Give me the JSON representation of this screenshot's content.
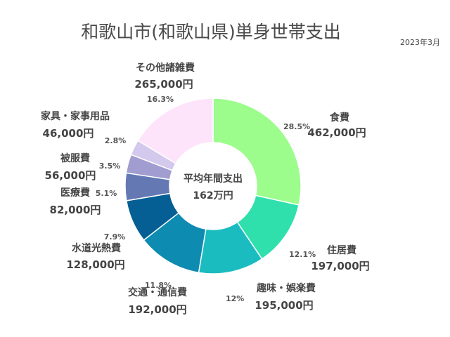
{
  "title": "和歌山市(和歌山県)単身世帯支出",
  "date": "2023年3月",
  "chart_data": {
    "type": "pie",
    "center_label": "平均年間支出",
    "center_value": "162万円",
    "slices": [
      {
        "label": "食費",
        "value": 462000,
        "value_label": "462,000円",
        "percent": "28.5%",
        "color": "#9cfc8c"
      },
      {
        "label": "住居費",
        "value": 197000,
        "value_label": "197,000円",
        "percent": "12.1%",
        "color": "#2fe0ad"
      },
      {
        "label": "趣味・娯楽費",
        "value": 195000,
        "value_label": "195,000円",
        "percent": "12%",
        "color": "#1bbcc0"
      },
      {
        "label": "交通・通信費",
        "value": 192000,
        "value_label": "192,000円",
        "percent": "11.8%",
        "color": "#0e8bb0"
      },
      {
        "label": "水道光熱費",
        "value": 128000,
        "value_label": "128,000円",
        "percent": "7.9%",
        "color": "#055f94"
      },
      {
        "label": "医療費",
        "value": 82000,
        "value_label": "82,000円",
        "percent": "5.1%",
        "color": "#6479b4"
      },
      {
        "label": "被服費",
        "value": 56000,
        "value_label": "56,000円",
        "percent": "3.5%",
        "color": "#a19dd0"
      },
      {
        "label": "家具・家事用品",
        "value": 46000,
        "value_label": "46,000円",
        "percent": "2.8%",
        "color": "#d3c9ec"
      },
      {
        "label": "その他諸雑費",
        "value": 265000,
        "value_label": "265,000円",
        "percent": "16.3%",
        "color": "#fde4fb"
      }
    ]
  }
}
